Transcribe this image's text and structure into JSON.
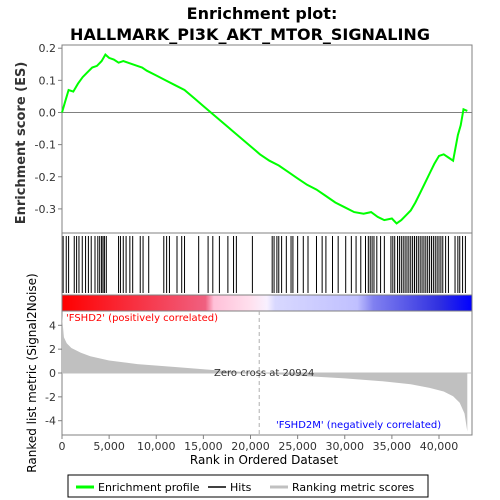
{
  "chart_data": {
    "type": "line",
    "title_line1": "Enrichment plot:",
    "title_line2": "HALLMARK_PI3K_AKT_MTOR_SIGNALING",
    "es_ylabel": "Enrichment score (ES)",
    "metric_ylabel_line1": "Ranked list metric (Signal2Noise)",
    "xlabel": "Rank in Ordered Dataset",
    "xlim": [
      0,
      43500
    ],
    "x_ticks": [
      0,
      5000,
      10000,
      15000,
      20000,
      25000,
      30000,
      35000,
      40000
    ],
    "x_tick_labels": [
      "0",
      "5,000",
      "10,000",
      "15,000",
      "20,000",
      "25,000",
      "30,000",
      "35,000",
      "40,000"
    ],
    "es_ylim": [
      -0.375,
      0.21
    ],
    "es_ticks": [
      0.2,
      0.1,
      0.0,
      -0.1,
      -0.2,
      -0.3
    ],
    "es_tick_labels": [
      "0.2",
      "0.1",
      "0.0",
      "-0.1",
      "-0.2",
      "-0.3"
    ],
    "metric_ylim": [
      -5.2,
      5.2
    ],
    "metric_ticks": [
      4,
      2,
      0,
      -2,
      -4
    ],
    "metric_tick_labels": [
      "4",
      "2",
      "0",
      "-2",
      "-4"
    ],
    "es_curve": {
      "x": [
        0,
        300,
        700,
        1200,
        1700,
        2200,
        2700,
        3200,
        3700,
        4200,
        4600,
        5000,
        5500,
        6000,
        6500,
        7000,
        7500,
        8000,
        8500,
        9000,
        10000,
        11000,
        12000,
        13000,
        14000,
        15000,
        16000,
        17000,
        18000,
        19000,
        20000,
        21000,
        22000,
        23000,
        24000,
        25000,
        26000,
        27000,
        28000,
        29000,
        30000,
        31000,
        32000,
        32800,
        33500,
        34200,
        35000,
        35500,
        36000,
        36500,
        37000,
        37500,
        38000,
        38500,
        39000,
        39500,
        40000,
        40500,
        41000,
        41500,
        42000,
        42300,
        42600,
        43000
      ],
      "y": [
        0.0,
        0.03,
        0.07,
        0.065,
        0.09,
        0.11,
        0.125,
        0.14,
        0.145,
        0.16,
        0.18,
        0.17,
        0.165,
        0.155,
        0.16,
        0.155,
        0.15,
        0.145,
        0.14,
        0.13,
        0.115,
        0.1,
        0.085,
        0.07,
        0.045,
        0.02,
        -0.005,
        -0.03,
        -0.055,
        -0.08,
        -0.105,
        -0.13,
        -0.15,
        -0.165,
        -0.185,
        -0.205,
        -0.225,
        -0.24,
        -0.26,
        -0.28,
        -0.295,
        -0.31,
        -0.315,
        -0.31,
        -0.325,
        -0.335,
        -0.33,
        -0.345,
        -0.335,
        -0.32,
        -0.305,
        -0.28,
        -0.25,
        -0.22,
        -0.19,
        -0.16,
        -0.135,
        -0.13,
        -0.14,
        -0.15,
        -0.07,
        -0.04,
        0.01,
        0.005
      ]
    },
    "hits": [
      120,
      450,
      700,
      1300,
      1550,
      1800,
      2150,
      2500,
      2800,
      3100,
      3500,
      3800,
      4000,
      4200,
      4350,
      4500,
      4700,
      6000,
      6200,
      6500,
      6800,
      7200,
      7500,
      8300,
      8600,
      9200,
      10800,
      11100,
      11400,
      12200,
      12700,
      13000,
      14500,
      15500,
      16000,
      16700,
      17600,
      18200,
      18500,
      20200,
      22300,
      22500,
      22800,
      23000,
      23300,
      23800,
      24300,
      24500,
      25000,
      25600,
      26100,
      27000,
      27600,
      28000,
      28700,
      29300,
      30100,
      30700,
      31200,
      31700,
      32200,
      32500,
      32700,
      32900,
      33100,
      33400,
      33800,
      34200,
      34900,
      35100,
      35300,
      35600,
      35800,
      36000,
      36200,
      36400,
      36600,
      36800,
      37000,
      37200,
      37400,
      37600,
      37800,
      38000,
      38200,
      38400,
      38600,
      38800,
      39000,
      39200,
      39400,
      39600,
      39800,
      40000,
      40200,
      40400,
      40700,
      41000,
      41700,
      42000,
      42200,
      42500,
      42800
    ],
    "metric_curve": {
      "x": [
        0,
        200,
        500,
        1000,
        2000,
        3000,
        5000,
        8000,
        12000,
        16000,
        20924,
        25000,
        30000,
        34000,
        37000,
        39000,
        40500,
        41500,
        42200,
        42700,
        43000
      ],
      "y": [
        4.8,
        3.0,
        2.5,
        2.1,
        1.7,
        1.4,
        1.05,
        0.75,
        0.5,
        0.25,
        0.0,
        -0.22,
        -0.45,
        -0.7,
        -0.95,
        -1.25,
        -1.55,
        -1.95,
        -2.5,
        -3.4,
        -4.9
      ]
    },
    "zero_cross_x": 20924,
    "zero_cross_label": "Zero cross at 20924",
    "pos_label": "'FSHD2' (positively correlated)",
    "neg_label": "'FSHD2M' (negatively correlated)",
    "legend": {
      "placement": "bottom",
      "items": [
        {
          "label": "Enrichment profile",
          "color": "#00ff00"
        },
        {
          "label": "Hits",
          "color": "#000000"
        },
        {
          "label": "Ranking metric scores",
          "color": "#c0c0c0"
        }
      ]
    },
    "colors": {
      "es_line": "#00ff00",
      "metric_fill": "#c0c0c0",
      "pos_label": "#ff0000",
      "neg_label": "#0000ff",
      "heat_pos_strong": "#ff0000",
      "heat_pos_weak": "#ffc8dc",
      "heat_neg_weak": "#c8c8ff",
      "heat_neg_strong": "#0000ff"
    }
  }
}
